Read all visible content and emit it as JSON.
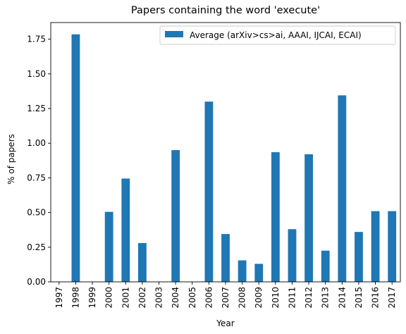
{
  "chart_data": {
    "type": "bar",
    "title": "Papers containing the word 'execute'",
    "xlabel": "Year",
    "ylabel": "% of papers",
    "categories": [
      "1997",
      "1998",
      "1999",
      "2000",
      "2001",
      "2002",
      "2003",
      "2004",
      "2005",
      "2006",
      "2007",
      "2008",
      "2009",
      "2010",
      "2011",
      "2012",
      "2013",
      "2014",
      "2015",
      "2016",
      "2017"
    ],
    "series": [
      {
        "name": "Average (arXiv>cs>ai, AAAI, IJCAI, ECAI)",
        "values": [
          0,
          1.785,
          0,
          0.505,
          0.745,
          0.28,
          0,
          0.95,
          0,
          1.3,
          0.345,
          0.155,
          0.13,
          0.935,
          0.38,
          0.92,
          0.225,
          1.345,
          0.36,
          0.51,
          0.51
        ]
      }
    ],
    "ylim": [
      0,
      1.87
    ],
    "yticks": [
      "0.00",
      "0.25",
      "0.50",
      "0.75",
      "1.00",
      "1.25",
      "1.50",
      "1.75"
    ],
    "grid": false,
    "legend": "top-right",
    "colors": {
      "bar": "#1f77b4"
    }
  }
}
